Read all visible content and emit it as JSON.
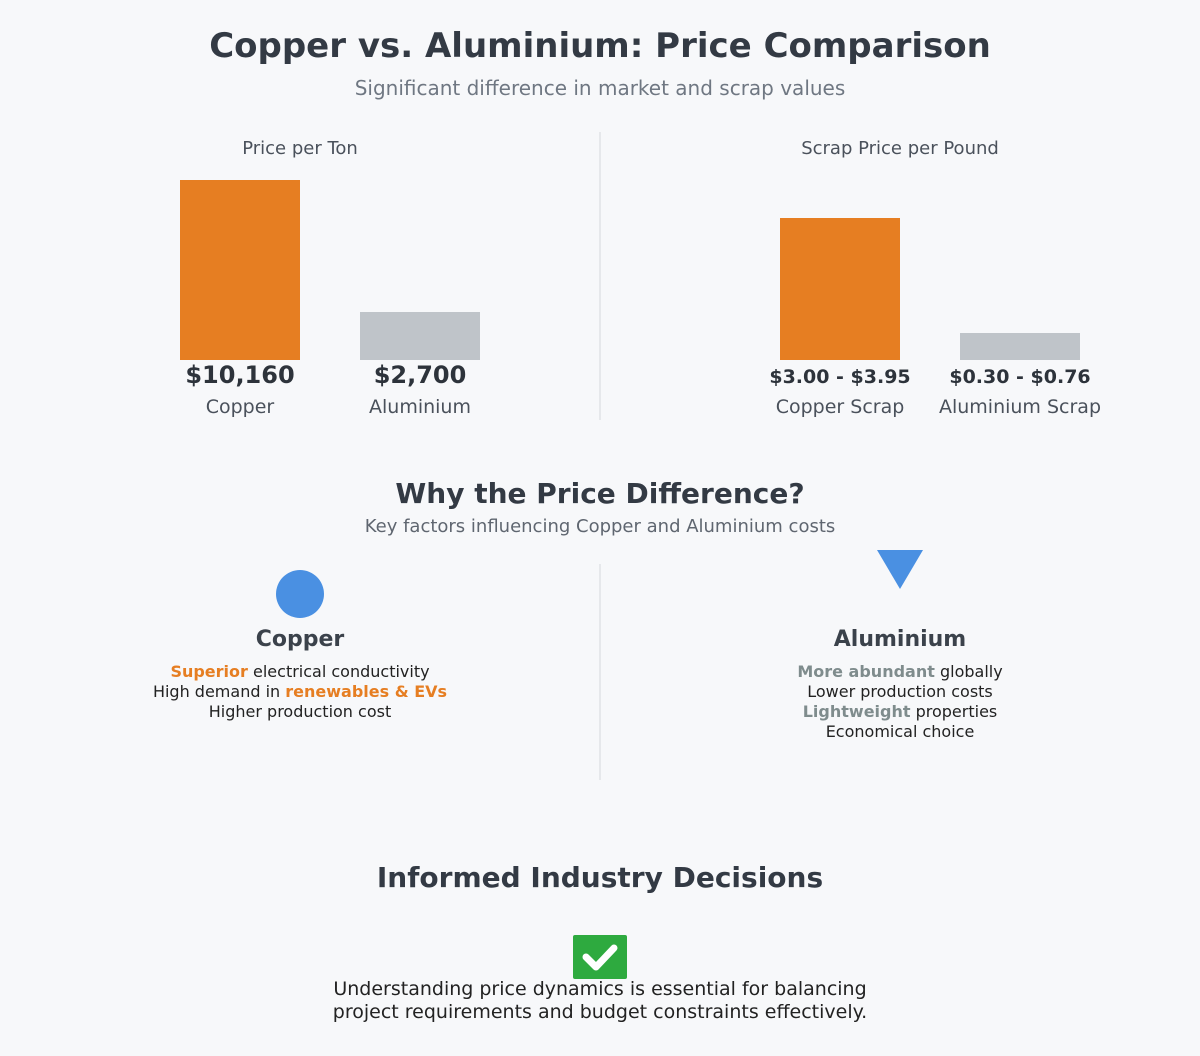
{
  "header": {
    "title": "Copper vs. Aluminium: Price Comparison",
    "subtitle": "Significant difference in market and scrap values"
  },
  "colors": {
    "copper": "#e67e22",
    "aluminium": "#bfc4c9",
    "accent_blue": "#4a90e2",
    "check_green": "#2eaa3f"
  },
  "chart_data": [
    {
      "type": "bar",
      "title": "Price per Ton",
      "categories": [
        "Copper",
        "Aluminium"
      ],
      "values": [
        10160,
        2700
      ],
      "value_labels": [
        "$10,160",
        "$2,700"
      ],
      "ylim": [
        0,
        10160
      ],
      "xlabel": "",
      "ylabel": "",
      "grid": false
    },
    {
      "type": "bar",
      "title": "Scrap Price per Pound",
      "categories": [
        "Copper Scrap",
        "Aluminium Scrap"
      ],
      "values": [
        3.95,
        0.76
      ],
      "value_labels": [
        "$3.00 - $3.95",
        "$0.30 - $0.76"
      ],
      "ylim": [
        0,
        4.9
      ],
      "xlabel": "",
      "ylabel": "",
      "grid": false
    }
  ],
  "why": {
    "title": "Why the Price Difference?",
    "subtitle": "Key factors influencing Copper and Aluminium costs",
    "copper": {
      "heading": "Copper",
      "icon": "circle-icon",
      "line1_highlight": "Superior",
      "line1_rest": " electrical conductivity",
      "line2_prefix": "High demand in ",
      "line2_highlight": "renewables & EVs",
      "line3": "Higher production cost"
    },
    "aluminium": {
      "heading": "Aluminium",
      "icon": "triangle-down-icon",
      "line1_highlight": "More abundant",
      "line1_rest": " globally",
      "line2": "Lower production costs",
      "line3_highlight": "Lightweight",
      "line3_rest": " properties",
      "line4": "Economical choice"
    }
  },
  "decisions": {
    "title": "Informed Industry Decisions",
    "icon": "checkmark-icon",
    "line1": "Understanding price dynamics is essential for balancing",
    "line2": "project requirements and budget constraints effectively."
  }
}
